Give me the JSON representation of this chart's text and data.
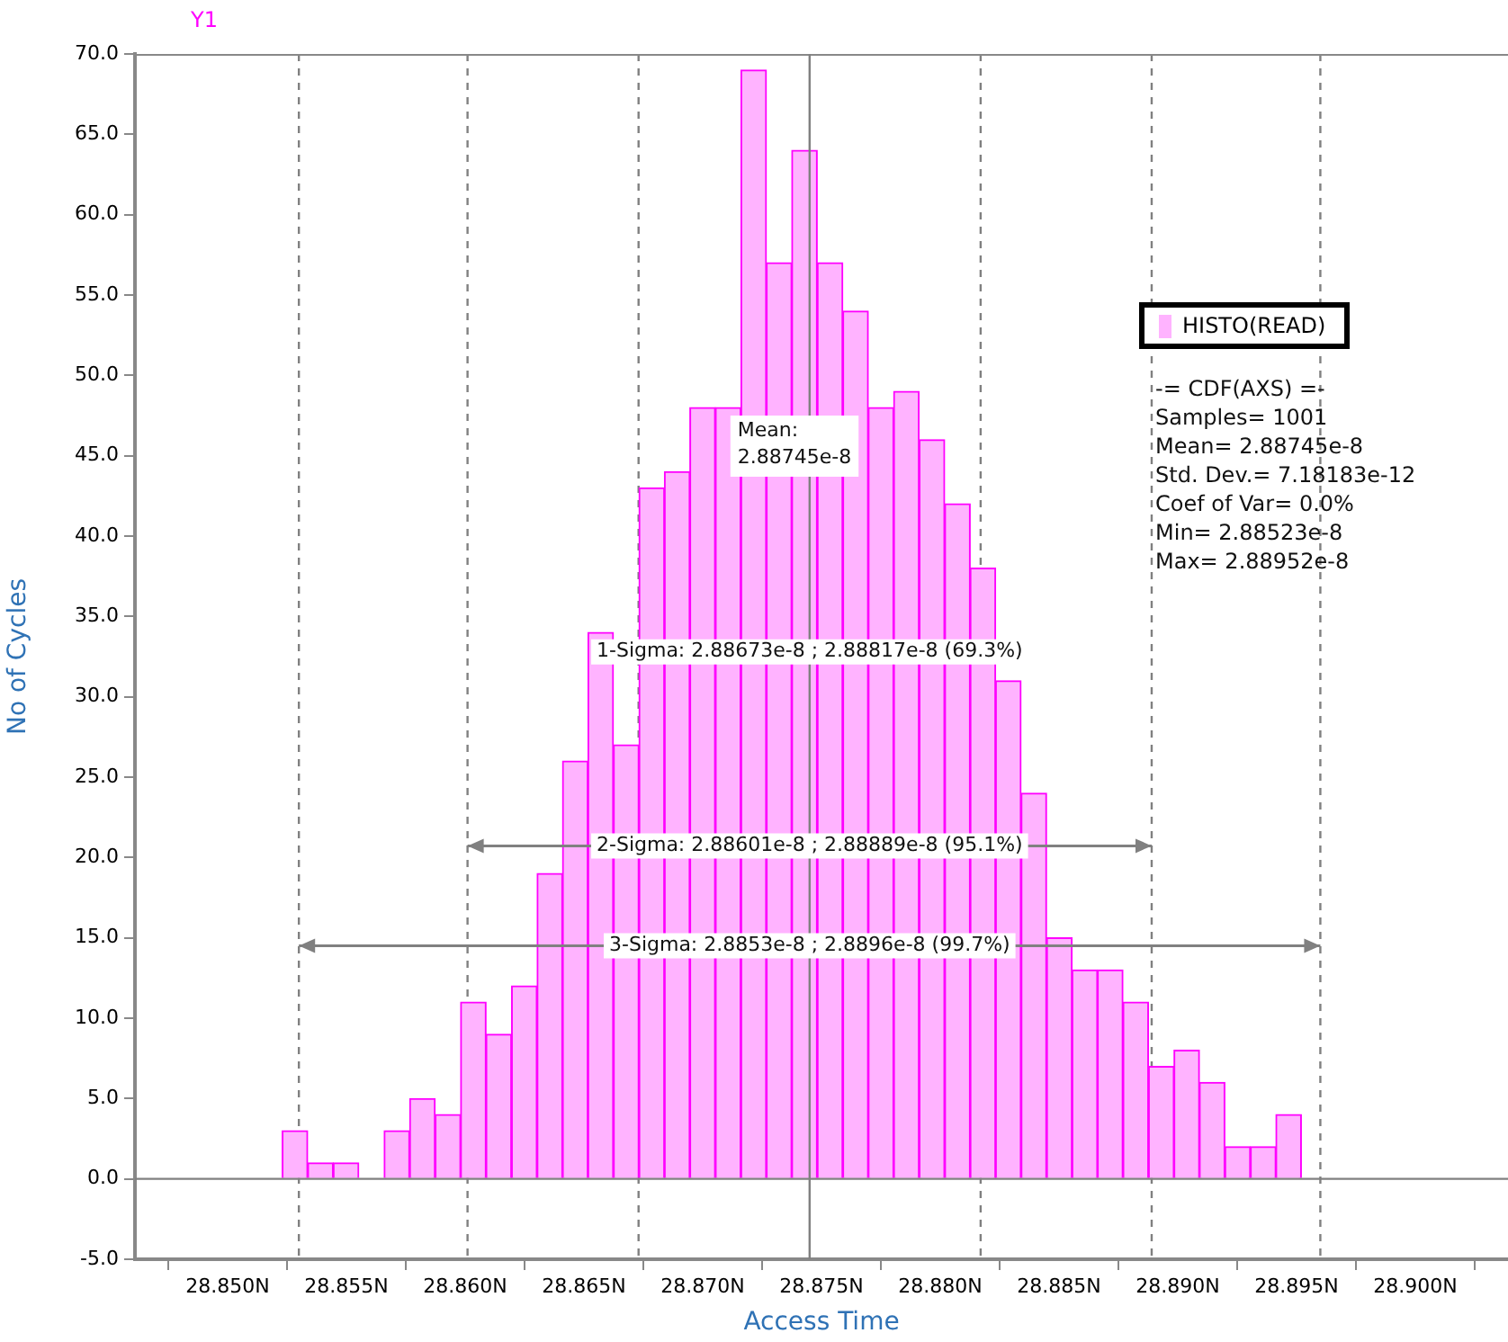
{
  "chart_data": {
    "type": "histogram",
    "xlabel": "Access Time",
    "ylabel": "No of Cycles",
    "bins": [
      28.8523,
      28.85337,
      28.85445,
      28.85552,
      28.85659,
      28.85766,
      28.85874,
      28.85981,
      28.86088,
      28.86195,
      28.86303,
      28.8641,
      28.86517,
      28.86624,
      28.86732,
      28.86839,
      28.86946,
      28.87053,
      28.87161,
      28.87268,
      28.87375,
      28.87482,
      28.8759,
      28.87697,
      28.87804,
      28.87911,
      28.88019,
      28.88126,
      28.88233,
      28.8834,
      28.88448,
      28.88555,
      28.88662,
      28.88769,
      28.88877,
      28.88984,
      28.89091,
      28.89198,
      28.89306,
      28.89413,
      28.8952
    ],
    "series": [
      {
        "name": "HISTO(READ)",
        "color": "#ffb3ff",
        "values": [
          3,
          1,
          1,
          0,
          3,
          5,
          4,
          11,
          9,
          12,
          19,
          26,
          34,
          27,
          43,
          44,
          48,
          48,
          69,
          57,
          64,
          57,
          54,
          48,
          49,
          46,
          42,
          38,
          31,
          24,
          15,
          13,
          13,
          11,
          7,
          8,
          6,
          2,
          2,
          4
        ]
      }
    ],
    "xlim": [
      28.8461,
      28.9039
    ],
    "xticks": [
      {
        "value": 28.85,
        "label": "28.850N"
      },
      {
        "value": 28.855,
        "label": "28.855N"
      },
      {
        "value": 28.86,
        "label": "28.860N"
      },
      {
        "value": 28.865,
        "label": "28.865N"
      },
      {
        "value": 28.87,
        "label": "28.870N"
      },
      {
        "value": 28.875,
        "label": "28.875N"
      },
      {
        "value": 28.88,
        "label": "28.880N"
      },
      {
        "value": 28.885,
        "label": "28.885N"
      },
      {
        "value": 28.89,
        "label": "28.890N"
      },
      {
        "value": 28.895,
        "label": "28.895N"
      },
      {
        "value": 28.9,
        "label": "28.900N"
      }
    ],
    "ylim": [
      -5,
      70
    ],
    "yticks": [
      {
        "value": -5,
        "label": "-5.0"
      },
      {
        "value": 0,
        "label": "0.0"
      },
      {
        "value": 5,
        "label": "5.0"
      },
      {
        "value": 10,
        "label": "10.0"
      },
      {
        "value": 15,
        "label": "15.0"
      },
      {
        "value": 20,
        "label": "20.0"
      },
      {
        "value": 25,
        "label": "25.0"
      },
      {
        "value": 30,
        "label": "30.0"
      },
      {
        "value": 35,
        "label": "35.0"
      },
      {
        "value": 40,
        "label": "40.0"
      },
      {
        "value": 45,
        "label": "45.0"
      },
      {
        "value": 50,
        "label": "50.0"
      },
      {
        "value": 55,
        "label": "55.0"
      },
      {
        "value": 60,
        "label": "60.0"
      },
      {
        "value": 65,
        "label": "65.0"
      },
      {
        "value": 70,
        "label": "70.0"
      }
    ],
    "ref_lines": [
      {
        "axis": "x",
        "value": 28.8745,
        "color": "#808080",
        "line_style": "solid"
      },
      {
        "axis": "y",
        "value": 0,
        "color": "#808080",
        "line_style": "solid"
      },
      {
        "axis": "x",
        "value": 28.8673,
        "color": "#808080",
        "line_style": "dashed"
      },
      {
        "axis": "x",
        "value": 28.8817,
        "color": "#808080",
        "line_style": "dashed"
      },
      {
        "axis": "x",
        "value": 28.8601,
        "color": "#808080",
        "line_style": "dashed"
      },
      {
        "axis": "x",
        "value": 28.8889,
        "color": "#808080",
        "line_style": "dashed"
      },
      {
        "axis": "x",
        "value": 28.853,
        "color": "#808080",
        "line_style": "dashed"
      },
      {
        "axis": "x",
        "value": 28.896,
        "color": "#808080",
        "line_style": "dashed"
      }
    ],
    "annotations": [
      "Y1",
      "Mean: 2.88745e-8",
      "1-Sigma: 2.88673e-8 ; 2.88817e-8 (69.3%)",
      "2-Sigma: 2.88601e-8 ; 2.88889e-8 (95.1%)",
      "3-Sigma: 2.8853e-8 ; 2.8896e-8 (99.7%)",
      "-= CDF(AXS) =-",
      "Samples= 1001",
      "Mean= 2.88745e-8",
      "Std. Dev.= 7.18183e-12",
      "Coef of Var= 0.0%",
      "Min= 2.88523e-8",
      "Max= 2.88952e-8"
    ],
    "legend": "right",
    "grid": false
  }
}
